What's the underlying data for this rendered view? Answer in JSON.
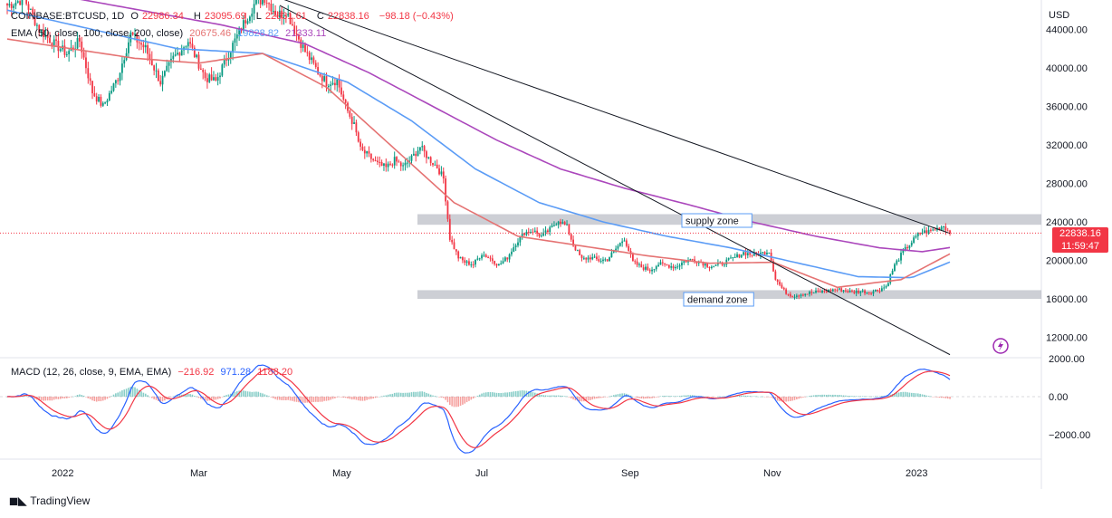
{
  "header": {
    "symbol": "COINBASE:BTCUSD, 1D",
    "open_label": "O",
    "open": "22986.34",
    "high_label": "H",
    "high": "23095.69",
    "low_label": "L",
    "low": "22631.61",
    "close_label": "C",
    "close": "22838.16",
    "change": "−98.18 (−0.43%)"
  },
  "ema_legend": {
    "label": "EMA (50, close, 100, close, 200, close)",
    "v50": "20675.46",
    "v100": "19828.82",
    "v200": "21333.11",
    "colors": [
      "#e57373",
      "#5b9cf6",
      "#ab47bc"
    ]
  },
  "macd_legend": {
    "label": "MACD (12, 26, close, 9, EMA, EMA)",
    "hist": "−216.92",
    "macd": "971.28",
    "signal": "1188.20",
    "colors": {
      "hist": "#f23645",
      "macd": "#2962ff",
      "signal": "#f23645"
    }
  },
  "currency": "USD",
  "price_tag": {
    "price": "22838.16",
    "countdown": "11:59:47",
    "color": "#f23645"
  },
  "annotations": {
    "supply": "supply zone",
    "demand": "demand zone"
  },
  "footer": {
    "brand": "TradingView"
  },
  "chart_data": {
    "type": "candlestick",
    "x_ticks": [
      "2022",
      "Mar",
      "May",
      "Jul",
      "Sep",
      "Nov",
      "2023"
    ],
    "price_axis": {
      "range": [
        10000,
        46000
      ],
      "ticks": [
        "44000.00",
        "40000.00",
        "36000.00",
        "32000.00",
        "28000.00",
        "24000.00",
        "20000.00",
        "16000.00",
        "12000.00"
      ]
    },
    "macd_axis": {
      "ticks": [
        "2000.00",
        "0.00",
        "−2000.00"
      ]
    },
    "supply_zone": [
      23700,
      24800
    ],
    "demand_zone": [
      16000,
      16900
    ],
    "last_close": 22838.16,
    "close_path": [
      [
        0,
        46500
      ],
      [
        8,
        47200
      ],
      [
        15,
        44000
      ],
      [
        22,
        42500
      ],
      [
        28,
        41500
      ],
      [
        34,
        42800
      ],
      [
        40,
        37500
      ],
      [
        45,
        36000
      ],
      [
        52,
        39000
      ],
      [
        58,
        43500
      ],
      [
        65,
        42000
      ],
      [
        72,
        38500
      ],
      [
        78,
        41000
      ],
      [
        85,
        42800
      ],
      [
        93,
        39000
      ],
      [
        98,
        38600
      ],
      [
        104,
        41500
      ],
      [
        110,
        44200
      ],
      [
        116,
        46600
      ],
      [
        121,
        47300
      ],
      [
        127,
        45500
      ],
      [
        131,
        46000
      ],
      [
        136,
        43500
      ],
      [
        140,
        41700
      ],
      [
        146,
        39600
      ],
      [
        150,
        38500
      ],
      [
        155,
        38700
      ],
      [
        159,
        36000
      ],
      [
        163,
        34000
      ],
      [
        166,
        31500
      ],
      [
        170,
        30800
      ],
      [
        174,
        30000
      ],
      [
        178,
        29600
      ],
      [
        182,
        30400
      ],
      [
        186,
        29700
      ],
      [
        190,
        30600
      ],
      [
        194,
        31800
      ],
      [
        198,
        30600
      ],
      [
        202,
        29700
      ],
      [
        205,
        28500
      ],
      [
        208,
        22300
      ],
      [
        212,
        20300
      ],
      [
        215,
        19800
      ],
      [
        219,
        19600
      ],
      [
        223,
        20700
      ],
      [
        227,
        20200
      ],
      [
        231,
        19500
      ],
      [
        235,
        20300
      ],
      [
        239,
        21800
      ],
      [
        243,
        22900
      ],
      [
        247,
        23100
      ],
      [
        251,
        22500
      ],
      [
        255,
        23200
      ],
      [
        259,
        24200
      ],
      [
        263,
        23500
      ],
      [
        266,
        21600
      ],
      [
        270,
        20100
      ],
      [
        274,
        20300
      ],
      [
        278,
        20000
      ],
      [
        282,
        20100
      ],
      [
        286,
        21200
      ],
      [
        290,
        22300
      ],
      [
        294,
        19800
      ],
      [
        298,
        19300
      ],
      [
        302,
        19000
      ],
      [
        306,
        19600
      ],
      [
        310,
        19500
      ],
      [
        314,
        19300
      ],
      [
        318,
        19900
      ],
      [
        322,
        20100
      ],
      [
        326,
        19800
      ],
      [
        330,
        19400
      ],
      [
        334,
        19500
      ],
      [
        338,
        19900
      ],
      [
        342,
        20300
      ],
      [
        346,
        20800
      ],
      [
        350,
        20600
      ],
      [
        354,
        20700
      ],
      [
        358,
        21000
      ],
      [
        361,
        18100
      ],
      [
        365,
        16800
      ],
      [
        369,
        16300
      ],
      [
        373,
        16500
      ],
      [
        377,
        16600
      ],
      [
        381,
        16700
      ],
      [
        385,
        16800
      ],
      [
        389,
        17000
      ],
      [
        393,
        16900
      ],
      [
        397,
        16700
      ],
      [
        401,
        16800
      ],
      [
        405,
        16700
      ],
      [
        409,
        16900
      ],
      [
        413,
        17300
      ],
      [
        417,
        19500
      ],
      [
        421,
        20900
      ],
      [
        425,
        21900
      ],
      [
        429,
        22900
      ],
      [
        433,
        23000
      ],
      [
        437,
        23300
      ],
      [
        440,
        23600
      ],
      [
        443,
        22838
      ]
    ],
    "ema50": [
      [
        0,
        43000
      ],
      [
        30,
        42000
      ],
      [
        60,
        41000
      ],
      [
        90,
        40500
      ],
      [
        120,
        41500
      ],
      [
        150,
        38000
      ],
      [
        180,
        32000
      ],
      [
        210,
        26000
      ],
      [
        240,
        22500
      ],
      [
        270,
        21500
      ],
      [
        300,
        20500
      ],
      [
        330,
        19700
      ],
      [
        360,
        19800
      ],
      [
        390,
        17200
      ],
      [
        420,
        18000
      ],
      [
        443,
        20675
      ]
    ],
    "ema100": [
      [
        0,
        46000
      ],
      [
        40,
        44000
      ],
      [
        80,
        42000
      ],
      [
        120,
        41500
      ],
      [
        160,
        38500
      ],
      [
        190,
        34500
      ],
      [
        220,
        29500
      ],
      [
        250,
        26000
      ],
      [
        280,
        24000
      ],
      [
        310,
        22500
      ],
      [
        340,
        21300
      ],
      [
        370,
        19800
      ],
      [
        400,
        18300
      ],
      [
        425,
        18200
      ],
      [
        443,
        19829
      ]
    ],
    "ema200": [
      [
        0,
        48500
      ],
      [
        50,
        46500
      ],
      [
        100,
        44500
      ],
      [
        140,
        42500
      ],
      [
        170,
        39500
      ],
      [
        200,
        36000
      ],
      [
        230,
        32500
      ],
      [
        260,
        29500
      ],
      [
        290,
        27500
      ],
      [
        320,
        25800
      ],
      [
        350,
        24000
      ],
      [
        380,
        22500
      ],
      [
        410,
        21300
      ],
      [
        430,
        20900
      ],
      [
        443,
        21333
      ]
    ],
    "trendlines": [
      {
        "from": [
          125,
          47500
        ],
        "to": [
          443,
          22800
        ]
      },
      {
        "from": [
          128,
          46500
        ],
        "to": [
          443,
          10200
        ]
      }
    ]
  }
}
